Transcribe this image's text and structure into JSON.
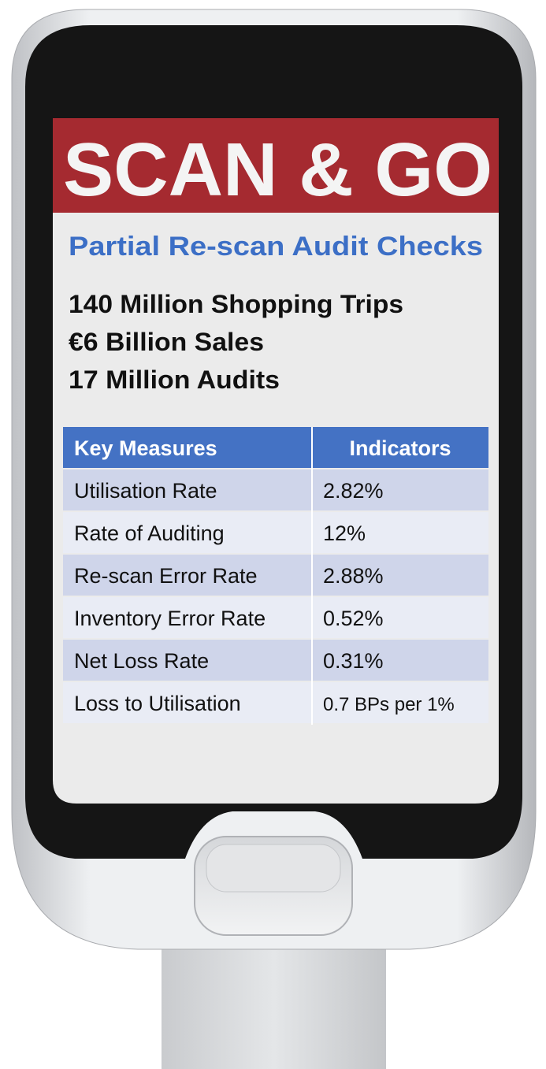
{
  "header": {
    "title": "SCAN & GO",
    "subtitle": "Partial Re-scan Audit Checks"
  },
  "stats": [
    "140 Million Shopping Trips",
    "€6 Billion Sales",
    "17 Million Audits"
  ],
  "table": {
    "columns": [
      "Key Measures",
      "Indicators"
    ],
    "rows": [
      [
        "Utilisation Rate",
        "2.82%"
      ],
      [
        "Rate of Auditing",
        "12%"
      ],
      [
        "Re-scan Error Rate",
        "2.88%"
      ],
      [
        "Inventory Error Rate",
        "0.52%"
      ],
      [
        "Net Loss Rate",
        "0.31%"
      ],
      [
        "Loss to Utilisation",
        "0.7 BPs per 1%"
      ]
    ]
  }
}
